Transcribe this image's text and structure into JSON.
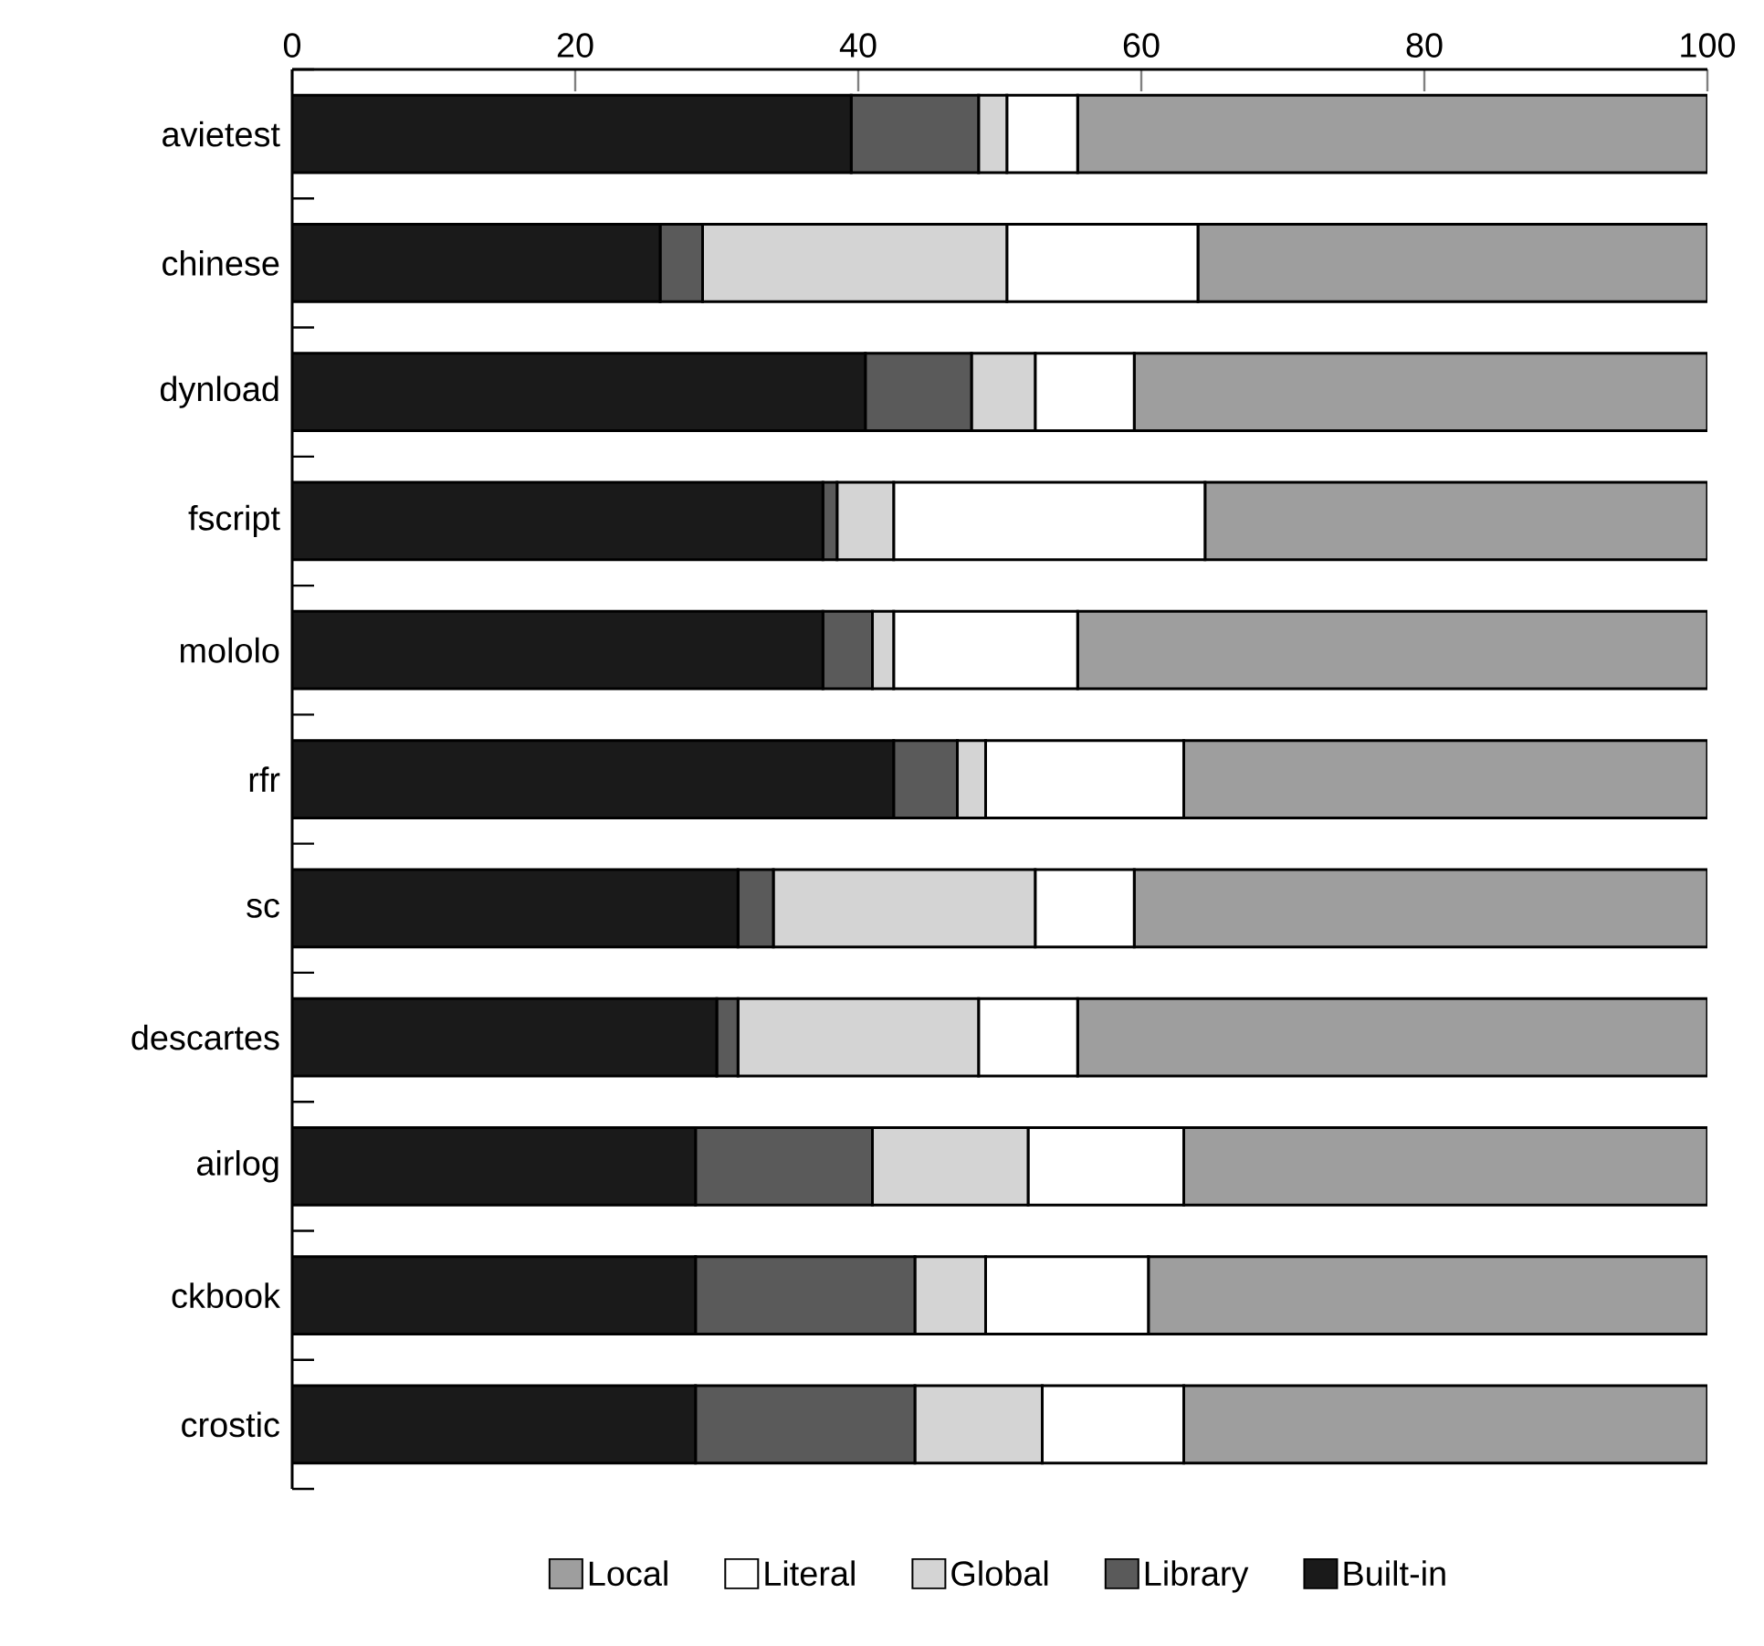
{
  "chart_data": {
    "type": "bar",
    "orientation": "horizontal",
    "stacked": true,
    "categories": [
      "avietest",
      "chinese",
      "dynload",
      "fscript",
      "mololo",
      "rfr",
      "sc",
      "descartes",
      "airlog",
      "ckbook",
      "crostic"
    ],
    "series": [
      {
        "name": "Built-in",
        "color": "#1a1a1a",
        "values": [
          39.5,
          26,
          40.5,
          37.5,
          37.5,
          42.5,
          31.5,
          30,
          28.5,
          28.5,
          28.5
        ]
      },
      {
        "name": "Library",
        "color": "#5a5a5a",
        "values": [
          9,
          3,
          7.5,
          1,
          3.5,
          4.5,
          2.5,
          1.5,
          12.5,
          15.5,
          15.5
        ]
      },
      {
        "name": "Global",
        "color": "#d4d4d4",
        "values": [
          2,
          21.5,
          4.5,
          4,
          1.5,
          2,
          18.5,
          17,
          11,
          5,
          9
        ]
      },
      {
        "name": "Literal",
        "color": "#ffffff",
        "values": [
          5,
          13.5,
          7,
          22,
          13,
          14,
          7,
          7,
          11,
          11.5,
          10
        ]
      },
      {
        "name": "Local",
        "color": "#9e9e9e",
        "values": [
          44.5,
          36,
          40.5,
          35.5,
          44.5,
          37,
          40.5,
          44.5,
          37,
          39.5,
          37
        ]
      }
    ],
    "xlim": [
      0,
      100
    ],
    "xticks": [
      0,
      20,
      40,
      60,
      80,
      100
    ],
    "legend": "bottom"
  }
}
